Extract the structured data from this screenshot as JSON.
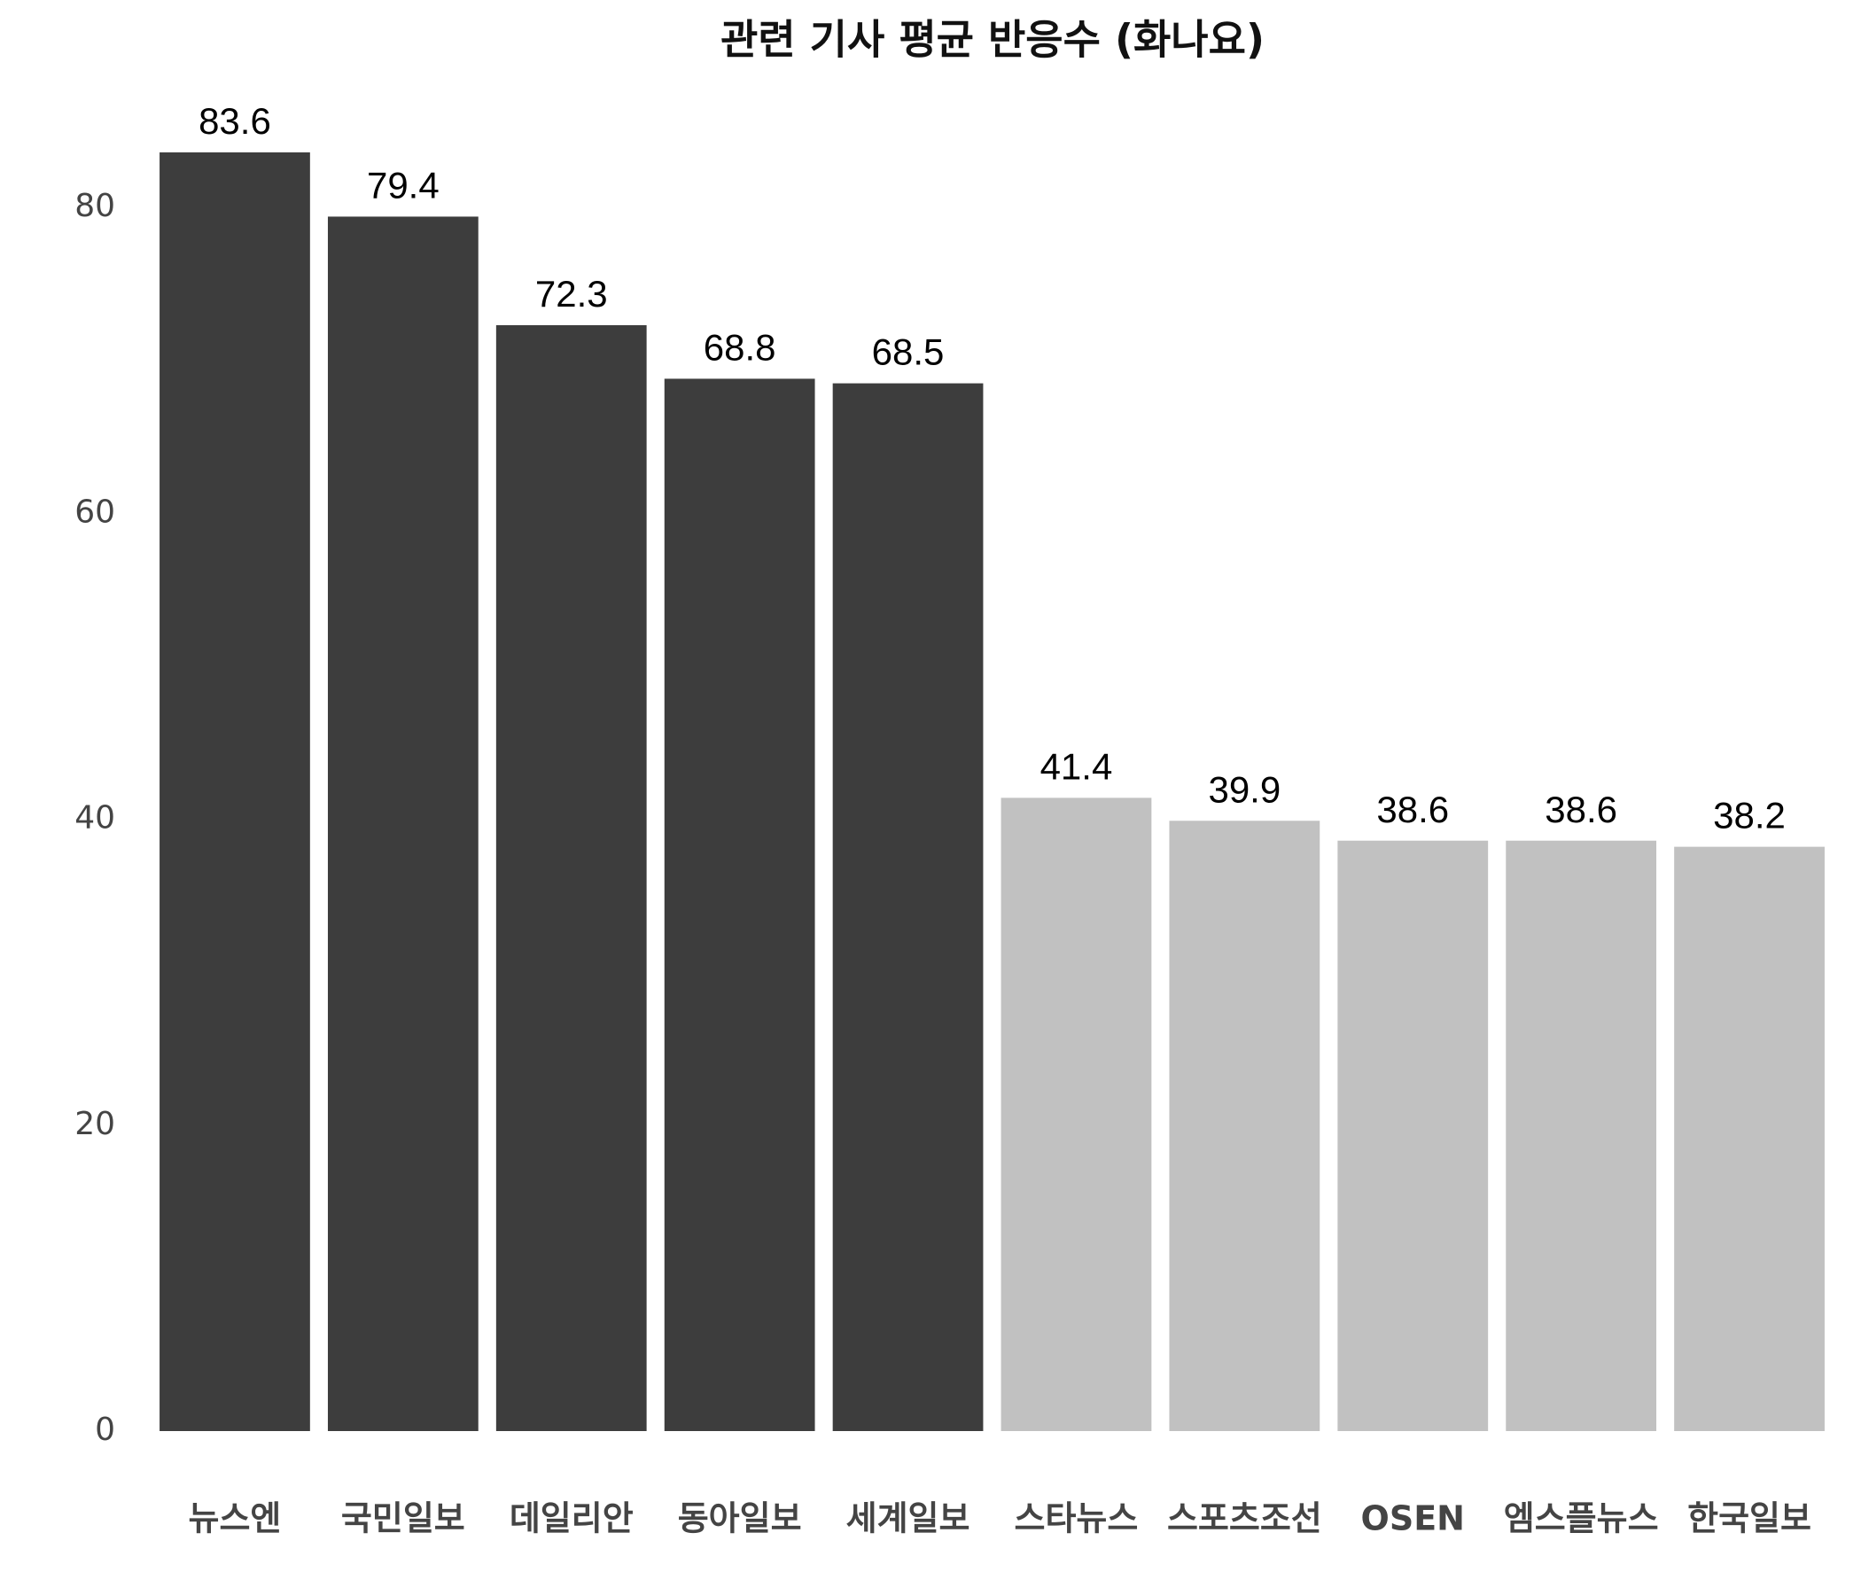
{
  "chart_data": {
    "type": "bar",
    "title": "관련 기사 평균 반응수 (화나요)",
    "categories": [
      "뉴스엔",
      "국민일보",
      "데일리안",
      "동아일보",
      "세계일보",
      "스타뉴스",
      "스포츠조선",
      "OSEN",
      "엠스플뉴스",
      "한국일보"
    ],
    "values": [
      83.6,
      79.4,
      72.3,
      68.8,
      68.5,
      41.4,
      39.9,
      38.6,
      38.6,
      38.2
    ],
    "colors": [
      "#3d3d3d",
      "#3d3d3d",
      "#3d3d3d",
      "#3d3d3d",
      "#3d3d3d",
      "#c1c1c1",
      "#c1c1c1",
      "#c1c1c1",
      "#c1c1c1",
      "#c1c1c1"
    ],
    "ylim": [
      0,
      88
    ],
    "yticks": [
      0,
      20,
      40,
      60,
      80
    ],
    "grid": false
  }
}
